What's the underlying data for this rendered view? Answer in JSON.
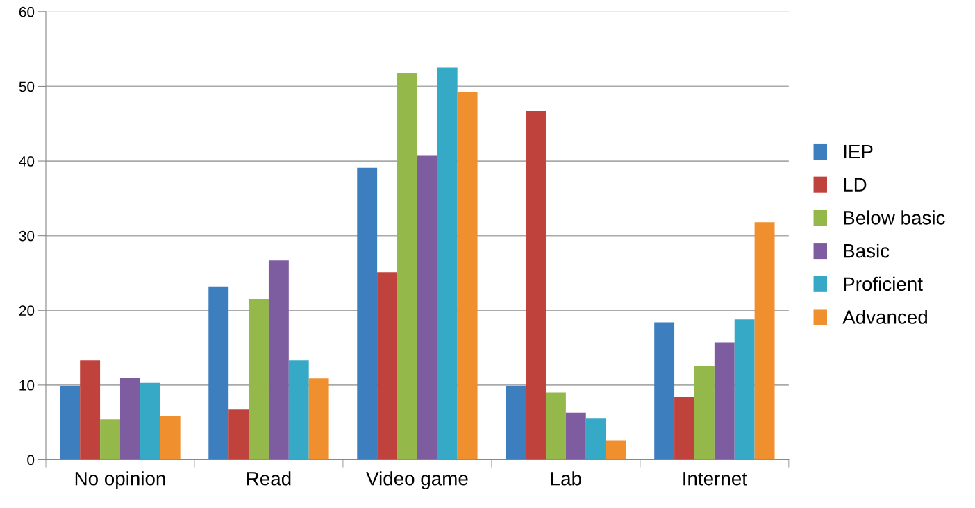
{
  "chart_data": {
    "type": "bar",
    "categories": [
      "No opinion",
      "Read",
      "Video game",
      "Lab",
      "Internet"
    ],
    "series": [
      {
        "name": "IEP",
        "color": "#3d7ebf",
        "values": [
          9.9,
          23.2,
          39.1,
          9.9,
          18.4
        ]
      },
      {
        "name": "LD",
        "color": "#c0423d",
        "values": [
          13.3,
          6.7,
          25.1,
          46.7,
          8.4
        ]
      },
      {
        "name": "Below basic",
        "color": "#94b84a",
        "values": [
          5.4,
          21.5,
          51.8,
          9.0,
          12.5
        ]
      },
      {
        "name": "Basic",
        "color": "#7d5da0",
        "values": [
          11.0,
          26.7,
          40.7,
          6.3,
          15.7
        ]
      },
      {
        "name": "Proficient",
        "color": "#36a9c6",
        "values": [
          10.3,
          13.3,
          52.5,
          5.5,
          18.8
        ]
      },
      {
        "name": "Advanced",
        "color": "#f08f2e",
        "values": [
          5.9,
          10.9,
          49.2,
          2.6,
          31.8
        ]
      }
    ],
    "ylim": [
      0,
      60
    ],
    "yticks": [
      0,
      10,
      20,
      30,
      40,
      50,
      60
    ],
    "grid": "y",
    "legend": "right"
  }
}
